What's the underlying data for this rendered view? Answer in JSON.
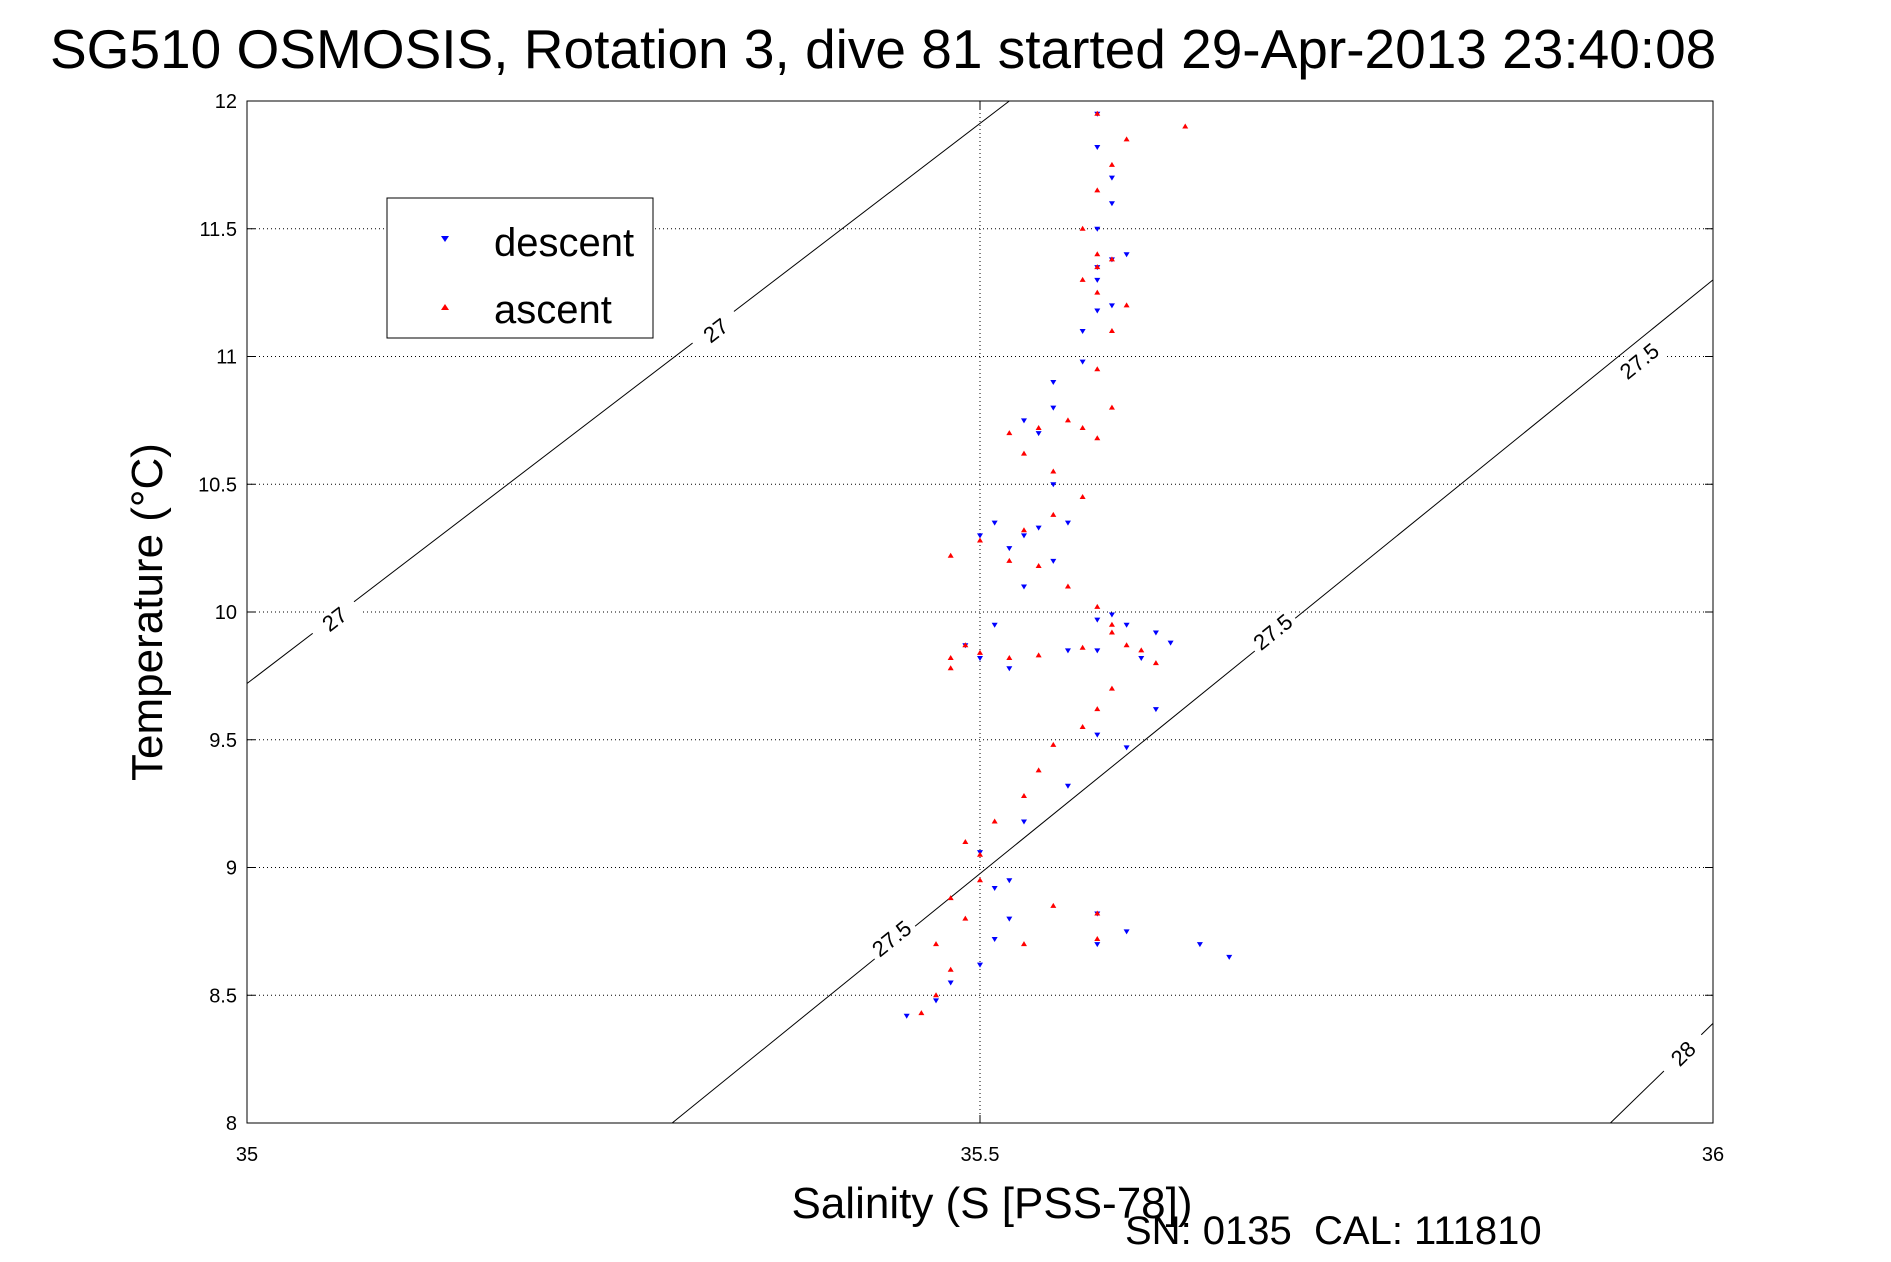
{
  "chart_data": {
    "type": "scatter",
    "title": "SG510 OSMOSIS, Rotation 3, dive 81 started 29-Apr-2013 23:40:08",
    "xlabel": "Salinity (S [PSS-78])",
    "ylabel": "Temperature (°C)",
    "footer": "SN: 0135  CAL: 111810",
    "xlim": [
      35,
      36
    ],
    "ylim": [
      8,
      12
    ],
    "xticks": [
      "35",
      "35.5",
      "36"
    ],
    "yticks": [
      "8",
      "8.5",
      "9",
      "9.5",
      "10",
      "10.5",
      "11",
      "11.5",
      "12"
    ],
    "grid": true,
    "legend_position": "top-left",
    "contours": [
      {
        "label": "27",
        "points": [
          [
            35.0,
            9.72
          ],
          [
            35.52,
            12.0
          ]
        ],
        "labels_at": [
          [
            35.06,
            9.97
          ],
          [
            35.32,
            11.1
          ]
        ]
      },
      {
        "label": "27.5",
        "points": [
          [
            35.29,
            8.0
          ],
          [
            36.0,
            11.3
          ]
        ],
        "labels_at": [
          [
            35.44,
            8.72
          ],
          [
            35.7,
            9.92
          ],
          [
            35.95,
            10.98
          ]
        ]
      },
      {
        "label": "28",
        "points": [
          [
            35.93,
            8.0
          ],
          [
            36.0,
            8.39
          ]
        ],
        "labels_at": [
          [
            35.98,
            8.27
          ]
        ]
      }
    ],
    "series": [
      {
        "name": "descent",
        "color": "#0000ff",
        "marker": "triangle-down",
        "x": [
          35.45,
          35.47,
          35.48,
          35.5,
          35.51,
          35.52,
          35.51,
          35.5,
          35.52,
          35.53,
          35.56,
          35.58,
          35.6,
          35.62,
          35.65,
          35.67,
          35.6,
          35.58,
          35.58,
          35.52,
          35.5,
          35.49,
          35.51,
          35.53,
          35.56,
          35.58,
          35.59,
          35.6,
          35.62,
          35.63,
          35.61,
          35.58,
          35.55,
          35.53,
          35.52,
          35.54,
          35.56,
          35.55,
          35.51,
          35.5,
          35.54,
          35.53,
          35.55,
          35.55,
          35.57,
          35.57,
          35.58,
          35.59,
          35.58,
          35.58,
          35.59,
          35.6,
          35.58,
          35.59,
          35.59,
          35.58,
          35.58
        ],
        "y": [
          8.42,
          8.48,
          8.55,
          8.62,
          8.72,
          8.8,
          8.92,
          9.06,
          8.95,
          9.18,
          9.32,
          9.52,
          9.47,
          9.62,
          8.7,
          8.65,
          8.75,
          8.82,
          8.7,
          9.78,
          9.82,
          9.87,
          9.95,
          10.1,
          9.85,
          9.97,
          9.99,
          9.95,
          9.92,
          9.88,
          9.82,
          9.85,
          10.2,
          10.3,
          10.25,
          10.33,
          10.35,
          10.5,
          10.35,
          10.3,
          10.7,
          10.75,
          10.8,
          10.9,
          10.98,
          11.1,
          11.18,
          11.2,
          11.3,
          11.35,
          11.38,
          11.4,
          11.5,
          11.6,
          11.7,
          11.82,
          11.95
        ]
      },
      {
        "name": "ascent",
        "color": "#ff0000",
        "marker": "triangle-up",
        "x": [
          35.46,
          35.47,
          35.48,
          35.47,
          35.49,
          35.48,
          35.5,
          35.5,
          35.49,
          35.51,
          35.53,
          35.54,
          35.55,
          35.57,
          35.58,
          35.59,
          35.58,
          35.58,
          35.55,
          35.53,
          35.48,
          35.48,
          35.49,
          35.5,
          35.52,
          35.54,
          35.57,
          35.59,
          35.61,
          35.62,
          35.6,
          35.59,
          35.58,
          35.56,
          35.54,
          35.52,
          35.48,
          35.5,
          35.53,
          35.55,
          35.57,
          35.55,
          35.53,
          35.52,
          35.54,
          35.56,
          35.57,
          35.58,
          35.59,
          35.58,
          35.59,
          35.6,
          35.58,
          35.57,
          35.58,
          35.59,
          35.58,
          35.57,
          35.58,
          35.59,
          35.6,
          35.64,
          35.58
        ],
        "y": [
          8.43,
          8.5,
          8.6,
          8.7,
          8.8,
          8.88,
          8.95,
          9.05,
          9.1,
          9.18,
          9.28,
          9.38,
          9.48,
          9.55,
          9.62,
          9.7,
          8.72,
          8.82,
          8.85,
          8.7,
          9.78,
          9.82,
          9.87,
          9.84,
          9.82,
          9.83,
          9.86,
          9.92,
          9.85,
          9.8,
          9.87,
          9.95,
          10.02,
          10.1,
          10.18,
          10.2,
          10.22,
          10.28,
          10.32,
          10.38,
          10.45,
          10.55,
          10.62,
          10.7,
          10.72,
          10.75,
          10.72,
          10.68,
          10.8,
          10.95,
          11.1,
          11.2,
          11.25,
          11.3,
          11.35,
          11.38,
          11.4,
          11.5,
          11.65,
          11.75,
          11.85,
          11.9,
          11.95
        ]
      }
    ]
  }
}
